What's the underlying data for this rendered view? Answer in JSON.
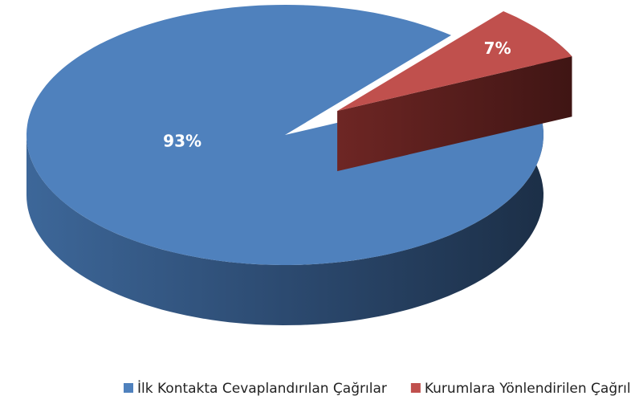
{
  "chart_data": {
    "type": "pie",
    "categories": [
      "İlk Kontakta Cevaplandırılan Çağrılar",
      "Kurumlara Yönlendirilen Çağrılar"
    ],
    "values": [
      93,
      7
    ],
    "value_labels": [
      "93%",
      "7%"
    ],
    "colors": [
      "#4f81bd",
      "#c0504d"
    ],
    "legend": "bottom"
  }
}
